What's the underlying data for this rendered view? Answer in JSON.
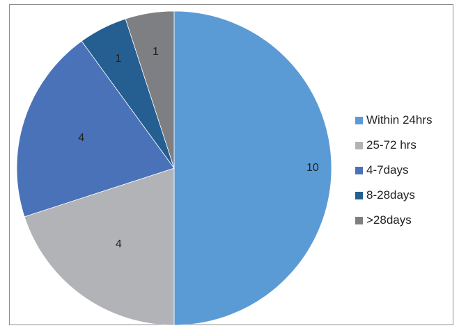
{
  "chart_data": {
    "type": "pie",
    "title": "",
    "categories": [
      "Within 24hrs",
      "25-72 hrs",
      "4-7days",
      "8-28days",
      ">28days"
    ],
    "values": [
      10,
      4,
      4,
      1,
      1
    ],
    "colors": [
      "#5b9bd5",
      "#b1b3b6",
      "#4a72b8",
      "#255e91",
      "#7e7f82"
    ],
    "start_angle_deg": 0,
    "direction": "clockwise",
    "legend_position": "right"
  }
}
